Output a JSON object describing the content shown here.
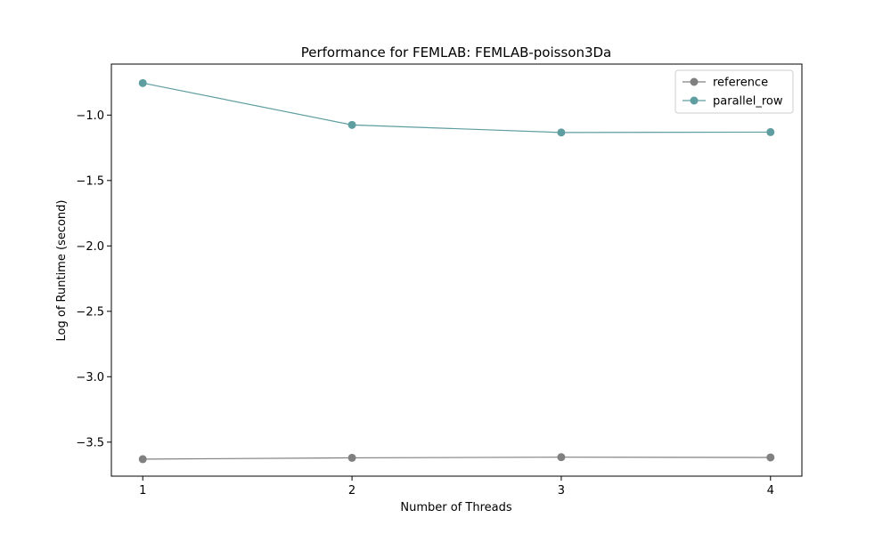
{
  "chart_data": {
    "type": "line",
    "title": "Performance for FEMLAB: FEMLAB-poisson3Da",
    "xlabel": "Number of Threads",
    "ylabel": "Log of Runtime (second)",
    "x": [
      1,
      2,
      3,
      4
    ],
    "xlim": [
      0.85,
      4.15
    ],
    "ylim": [
      -3.76,
      -0.61
    ],
    "xticks": [
      1,
      2,
      3,
      4
    ],
    "yticks": [
      -1.0,
      -1.5,
      -2.0,
      -2.5,
      -3.0,
      -3.5
    ],
    "ytick_labels": [
      "−1.0",
      "−1.5",
      "−2.0",
      "−2.5",
      "−3.0",
      "−3.5"
    ],
    "legend_position": "top-right",
    "grid": false,
    "series": [
      {
        "name": "reference",
        "color": "#808080",
        "values": [
          -3.63,
          -3.62,
          -3.615,
          -3.617
        ]
      },
      {
        "name": "parallel_row",
        "color": "#5f9ea0",
        "values": [
          -0.755,
          -1.075,
          -1.133,
          -1.13
        ]
      }
    ]
  }
}
